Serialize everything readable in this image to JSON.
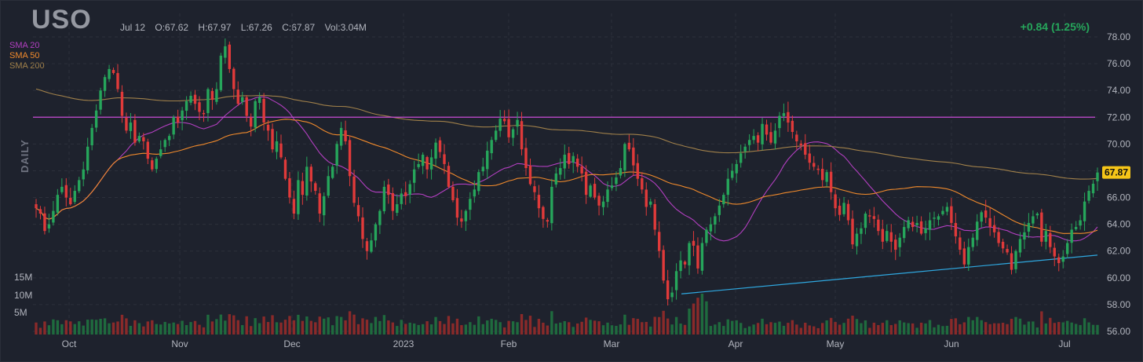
{
  "header": {
    "ticker": "USO",
    "date": "Jul 12",
    "open": "O:67.62",
    "high": "H:67.97",
    "low": "L:67.26",
    "close": "C:67.87",
    "volume": "Vol:3.04M",
    "change": "+0.84 (1.25%)",
    "side_label": "DAILY"
  },
  "legend": [
    {
      "label": "SMA 20",
      "color": "#b23fc0"
    },
    {
      "label": "SMA 50",
      "color": "#f08a2c"
    },
    {
      "label": "SMA 200",
      "color": "#a0804a"
    }
  ],
  "colors": {
    "background": "#1e222d",
    "up": "#26a65b",
    "down": "#e03a3a",
    "resistance": "#c84bd6",
    "trendline": "#2fa8e0",
    "price_tag": "#f5c518"
  },
  "chart_data": {
    "type": "candlestick",
    "title": "USO",
    "ylim": [
      56,
      78
    ],
    "y_ticks": [
      "78.00",
      "76.00",
      "74.00",
      "72.00",
      "70.00",
      "68.00",
      "66.00",
      "64.00",
      "62.00",
      "60.00",
      "58.00",
      "56.00"
    ],
    "x_ticks": [
      "Oct",
      "Nov",
      "Dec",
      "2023",
      "Feb",
      "Mar",
      "Apr",
      "May",
      "Jun",
      "Jul"
    ],
    "volume_ticks": [
      "15M",
      "10M",
      "5M"
    ],
    "last_price": "67.87",
    "resistance_level": 72.0,
    "trendline": {
      "from": [
        "2023-03-20",
        58.8
      ],
      "to": [
        "2023-07-12",
        61.7
      ]
    },
    "closes": [
      65.2,
      64.8,
      63.5,
      64.0,
      65.0,
      66.2,
      66.8,
      66.0,
      65.5,
      66.5,
      67.3,
      68.1,
      69.8,
      71.2,
      72.5,
      74.0,
      75.0,
      75.6,
      75.3,
      74.1,
      72.1,
      71.0,
      71.6,
      70.1,
      70.6,
      70.2,
      68.9,
      68.1,
      68.9,
      69.6,
      70.3,
      70.6,
      72.0,
      71.6,
      72.5,
      73.2,
      73.6,
      73.0,
      72.4,
      72.3,
      74.1,
      73.3,
      74.1,
      76.6,
      77.3,
      75.6,
      74.1,
      73.0,
      73.5,
      72.1,
      71.3,
      73.2,
      73.5,
      71.6,
      71.0,
      69.6,
      70.2,
      69.0,
      67.4,
      66.0,
      64.8,
      67.3,
      66.2,
      68.3,
      67.2,
      66.5,
      64.8,
      66.1,
      67.6,
      68.3,
      70.0,
      71.2,
      70.2,
      67.6,
      65.6,
      64.6,
      62.9,
      62.0,
      62.8,
      64.0,
      65.0,
      66.8,
      66.2,
      65.0,
      65.5,
      66.3,
      66.1,
      67.0,
      68.1,
      68.5,
      69.2,
      68.1,
      69.0,
      70.1,
      69.4,
      68.5,
      66.8,
      65.8,
      64.5,
      64.2,
      65.0,
      65.9,
      66.6,
      67.9,
      68.3,
      69.5,
      70.3,
      71.0,
      71.9,
      71.7,
      70.5,
      71.1,
      71.8,
      69.6,
      68.2,
      67.0,
      66.4,
      65.2,
      64.4,
      64.2,
      66.8,
      67.8,
      68.2,
      69.2,
      68.5,
      69.1,
      68.3,
      67.8,
      66.2,
      66.9,
      66.0,
      65.4,
      65.7,
      66.6,
      66.9,
      67.5,
      68.2,
      70.0,
      69.6,
      68.4,
      67.4,
      66.6,
      65.3,
      65.7,
      63.6,
      62.0,
      59.8,
      58.4,
      58.9,
      60.5,
      61.3,
      61.0,
      62.6,
      62.4,
      60.7,
      62.6,
      63.6,
      64.0,
      64.6,
      65.4,
      66.2,
      67.4,
      68.0,
      68.5,
      69.3,
      69.8,
      70.3,
      70.6,
      70.1,
      71.5,
      70.7,
      70.1,
      71.0,
      72.1,
      72.3,
      71.6,
      70.9,
      70.2,
      69.9,
      69.2,
      68.6,
      68.3,
      68.1,
      67.3,
      67.9,
      66.4,
      65.2,
      64.7,
      65.6,
      64.3,
      62.5,
      63.3,
      63.7,
      64.8,
      64.6,
      64.4,
      63.5,
      62.7,
      63.5,
      62.7,
      62.1,
      63.0,
      63.8,
      64.3,
      63.8,
      64.1,
      63.3,
      63.7,
      64.3,
      64.5,
      64.6,
      65.0,
      65.3,
      64.1,
      63.1,
      62.1,
      61.0,
      62.3,
      63.0,
      64.2,
      64.9,
      64.5,
      63.8,
      63.4,
      62.6,
      62.2,
      61.9,
      60.6,
      62.0,
      62.9,
      63.4,
      64.1,
      64.6,
      64.8,
      62.7,
      63.5,
      62.3,
      61.6,
      61.1,
      61.6,
      62.6,
      63.6,
      63.8,
      64.3,
      65.7,
      66.5,
      67.03,
      67.87
    ]
  }
}
